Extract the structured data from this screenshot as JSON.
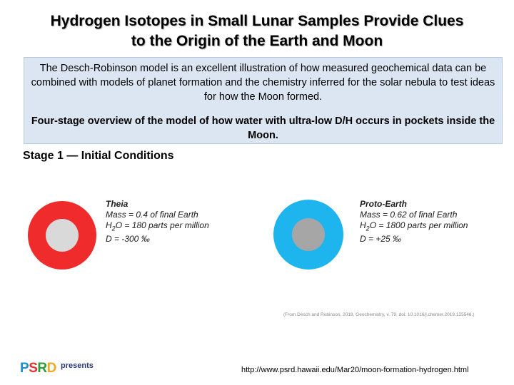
{
  "title": {
    "line1": "Hydrogen Isotopes in Small Lunar Samples Provide Clues",
    "line2": "to the Origin of the Earth and Moon"
  },
  "info": {
    "paragraph1": "The Desch-Robinson model is an excellent illustration of how measured geochemical data can be combined with models of planet formation and the chemistry inferred for the solar nebula to test ideas for how the Moon formed.",
    "paragraph2": "Four-stage overview of the model of how water with ultra-low D/H occurs in pockets inside the Moon."
  },
  "stage": "Stage 1 — Initial Conditions",
  "theia": {
    "name": "Theia",
    "mass": "Mass = 0.4 of final Earth",
    "water_prefix": "H",
    "water_sub": "2",
    "water_suffix": "O = 180 parts per million",
    "d_value": "D = -300 ‰",
    "outer_color": "#ef2b2b",
    "inner_color": "#d9d9d9"
  },
  "proto_earth": {
    "name": "Proto-Earth",
    "mass": "Mass = 0.62 of final Earth",
    "water_prefix": "H",
    "water_sub": "2",
    "water_suffix": "O = 1800 parts per million",
    "d_value": "D = +25 ‰",
    "outer_color": "#1eb4ee",
    "inner_color": "#a6a6a6"
  },
  "citation": "(From Desch and Robinson, 2019, Geochemistry, v. 79, doi: 10.1016/j.chemer.2019.125546.)",
  "logo": {
    "p": "P",
    "s": "S",
    "r": "R",
    "d": "D",
    "presents": "presents",
    "colors": {
      "p": "#1a8fd6",
      "s": "#e8312b",
      "r": "#2a9d3a",
      "d": "#f5a623"
    }
  },
  "url": "http://www.psrd.hawaii.edu/Mar20/moon-formation-hydrogen.html"
}
